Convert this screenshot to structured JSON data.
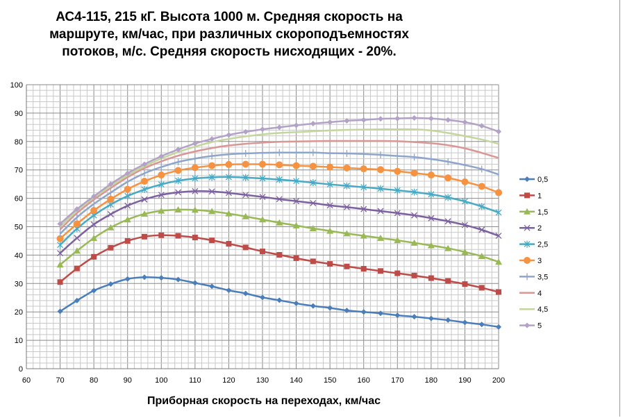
{
  "chart_data": {
    "type": "line",
    "title_lines": [
      "АС4-115, 215 кГ. Высота 1000 м. Средняя скорость на",
      "маршруте, км/час, при различных скороподъемностях",
      "потоков, м/с. Средняя скорость нисходящих - 20%."
    ],
    "xlabel": "Приборная скорость на переходах, км/час",
    "ylabel": "",
    "xlim": [
      60,
      200
    ],
    "ylim": [
      0,
      100
    ],
    "xticks": [
      60,
      70,
      80,
      90,
      100,
      110,
      120,
      130,
      140,
      150,
      160,
      170,
      180,
      190,
      200
    ],
    "yticks": [
      0,
      10,
      20,
      30,
      40,
      50,
      60,
      70,
      80,
      90,
      100
    ],
    "grid": true,
    "legend_position": "right",
    "x": [
      70,
      75,
      80,
      85,
      90,
      95,
      100,
      105,
      110,
      115,
      120,
      125,
      130,
      135,
      140,
      145,
      150,
      155,
      160,
      165,
      170,
      175,
      180,
      185,
      190,
      195,
      200
    ],
    "series": [
      {
        "name": "0,5",
        "color": "#4a7ebb",
        "marker": "diamond",
        "values": [
          20.2,
          24,
          27.5,
          29.8,
          31.6,
          32.2,
          32,
          31.4,
          30.2,
          29,
          27.6,
          26.5,
          25.1,
          24.1,
          23,
          22.1,
          21.4,
          20.5,
          20,
          19.5,
          18.8,
          18.3,
          17.7,
          17.1,
          16.3,
          15.6,
          14.7
        ]
      },
      {
        "name": "1",
        "color": "#be4b48",
        "marker": "square",
        "values": [
          30.5,
          35.3,
          39.4,
          42.6,
          45,
          46.5,
          47,
          46.8,
          46.2,
          45.2,
          44,
          42.7,
          41.3,
          40.1,
          38.9,
          37.8,
          36.9,
          36,
          35.2,
          34.4,
          33.6,
          32.8,
          31.9,
          30.9,
          29.8,
          28.5,
          27
        ]
      },
      {
        "name": "1,5",
        "color": "#98b954",
        "marker": "triangle",
        "values": [
          36.6,
          41.5,
          46,
          49.7,
          52.5,
          54.5,
          55.6,
          56,
          55.9,
          55.4,
          54.6,
          53.6,
          52.5,
          51.4,
          50.4,
          49.4,
          48.5,
          47.6,
          46.8,
          46,
          45.2,
          44.3,
          43.4,
          42.4,
          41.1,
          39.6,
          37.6
        ]
      },
      {
        "name": "2",
        "color": "#7d60a0",
        "marker": "x",
        "values": [
          40.7,
          46,
          50.8,
          54.4,
          57.4,
          59.6,
          61.2,
          62.1,
          62.5,
          62.4,
          61.9,
          61.2,
          60.5,
          59.7,
          59,
          58.3,
          57.5,
          56.9,
          56.2,
          55.5,
          54.8,
          54,
          53,
          51.9,
          50.6,
          48.9,
          46.8
        ]
      },
      {
        "name": "2,5",
        "color": "#46aac5",
        "marker": "star",
        "values": [
          43.6,
          49.3,
          54,
          57.8,
          60.8,
          63.1,
          64.9,
          66.2,
          67,
          67.4,
          67.5,
          67.3,
          67,
          66.6,
          66.1,
          65.5,
          64.9,
          64.4,
          63.9,
          63.4,
          62.8,
          62.2,
          61.4,
          60.3,
          58.9,
          57.1,
          55
        ]
      },
      {
        "name": "3",
        "color": "#f69240",
        "marker": "circle",
        "values": [
          45.8,
          51,
          55.7,
          59.7,
          63.2,
          66,
          68.2,
          69.8,
          70.8,
          71.5,
          71.9,
          72,
          72,
          71.8,
          71.5,
          71.3,
          71,
          70.7,
          70.4,
          70.1,
          69.5,
          68.9,
          68.2,
          67.2,
          65.8,
          64.2,
          62
        ]
      },
      {
        "name": "3,5",
        "color": "#8ea5cb",
        "marker": "plus",
        "values": [
          47.5,
          53.3,
          58,
          62,
          65.8,
          68.8,
          71,
          72.8,
          74,
          74.9,
          75.5,
          75.8,
          76,
          76.1,
          76.1,
          76.1,
          75.9,
          75.8,
          75.6,
          75.3,
          74.9,
          74.5,
          73.8,
          72.9,
          71.7,
          70.3,
          68.4
        ]
      },
      {
        "name": "4",
        "color": "#d99694",
        "marker": "none",
        "values": [
          49,
          54.8,
          59.5,
          63.6,
          67.4,
          70.6,
          73,
          75,
          76.5,
          77.7,
          78.6,
          79.2,
          79.6,
          79.9,
          80,
          80.1,
          80.2,
          80.2,
          80.2,
          80.2,
          80.1,
          79.8,
          79.4,
          78.7,
          77.6,
          76,
          74.2
        ]
      },
      {
        "name": "4,5",
        "color": "#c3d69b",
        "marker": "none",
        "values": [
          50,
          55.7,
          60.2,
          64.4,
          68.1,
          71.3,
          74,
          76.3,
          78.2,
          79.8,
          80.9,
          81.8,
          82.5,
          83,
          83.3,
          83.6,
          83.9,
          84.1,
          84.2,
          84.3,
          84.3,
          84.3,
          83.9,
          83,
          81.9,
          80.7,
          79.2
        ]
      },
      {
        "name": "5",
        "color": "#b3a2c7",
        "marker": "diamond",
        "values": [
          51,
          56.2,
          60.7,
          65,
          68.8,
          72,
          74.8,
          77.2,
          79.3,
          80.9,
          82.3,
          83.4,
          84.3,
          85,
          85.7,
          86.3,
          86.8,
          87.3,
          87.6,
          88,
          88.1,
          88.3,
          88.1,
          87.6,
          86.8,
          85.5,
          83.5
        ]
      }
    ]
  }
}
